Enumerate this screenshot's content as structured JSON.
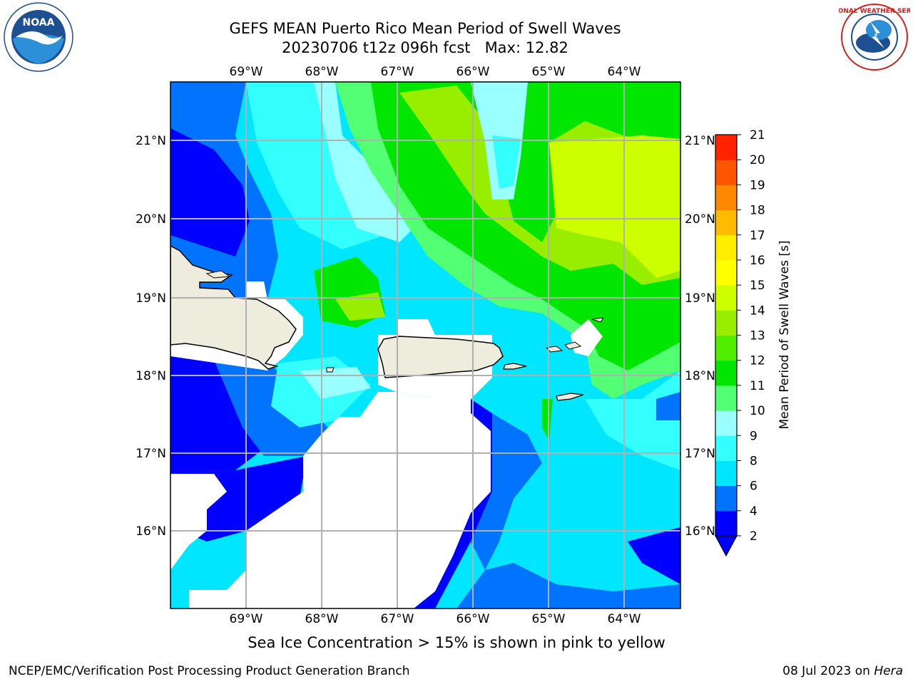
{
  "header": {
    "title_line1": "GEFS MEAN Puerto Rico Mean Period of Swell Waves",
    "title_line2": "20230706 t12z 096h fcst   Max: 12.82"
  },
  "map": {
    "lon_labels": [
      "69°W",
      "68°W",
      "67°W",
      "66°W",
      "65°W",
      "64°W"
    ],
    "lat_labels": [
      "21°N",
      "20°N",
      "19°N",
      "18°N",
      "17°N",
      "16°N"
    ],
    "colors": {
      "land": "#eeeddd",
      "gridline": "#b0b0b0",
      "no_data": "#ffffff"
    }
  },
  "colorbar": {
    "label": "Mean Period of Swell Waves [s]",
    "ticks": [
      "2",
      "4",
      "6",
      "8",
      "9",
      "10",
      "11",
      "12",
      "13",
      "14",
      "15",
      "16",
      "17",
      "18",
      "19",
      "20",
      "21"
    ],
    "colors": [
      "#0000ff",
      "#0073ff",
      "#00e6ff",
      "#33ffff",
      "#99ffff",
      "#53ff73",
      "#00e600",
      "#50ee00",
      "#99ee00",
      "#ccff00",
      "#ffff00",
      "#ffee00",
      "#ffbb00",
      "#ff8800",
      "#ff5500",
      "#ff2200"
    ],
    "extend": "min"
  },
  "footnote": "Sea Ice Concentration > 15% is shown in pink to yellow",
  "footer": {
    "left": "NCEP/EMC/Verification Post Processing Product Generation Branch",
    "date": "08 Jul 2023 on ",
    "machine": "Hera"
  },
  "logos": {
    "noaa_text": "NOAA",
    "nws_text": "NATIONAL WEATHER SERVICE"
  }
}
